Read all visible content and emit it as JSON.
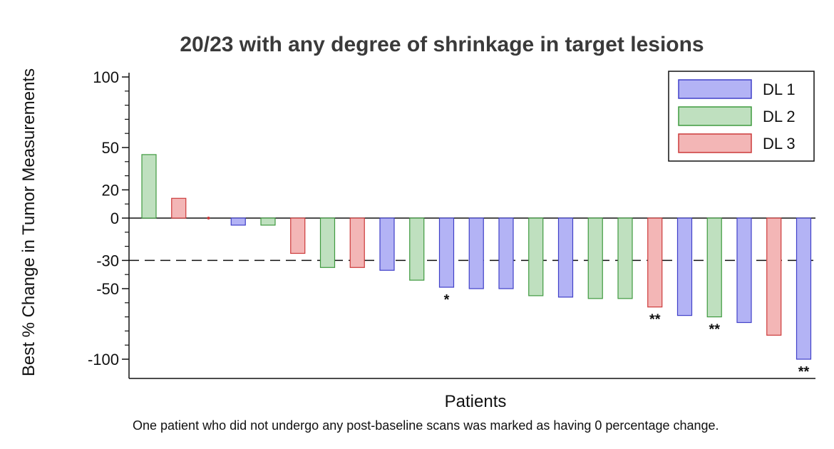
{
  "chart_data": {
    "type": "bar",
    "title": "20/23 with any degree of shrinkage in target lesions",
    "xlabel": "Patients",
    "ylabel": "Best % Change in Tumor Measurements",
    "ylim": [
      -113,
      103
    ],
    "yticks": [
      {
        "value": 100,
        "label": "100"
      },
      {
        "value": 50,
        "label": "50"
      },
      {
        "value": 20,
        "label": "20"
      },
      {
        "value": 0,
        "label": "0"
      },
      {
        "value": -30,
        "label": "-30"
      },
      {
        "value": -50,
        "label": "-50"
      },
      {
        "value": -100,
        "label": "-100"
      }
    ],
    "minor_ticks": [
      90,
      80,
      70,
      60,
      40,
      30,
      10,
      -10,
      -20,
      -40,
      -60,
      -70,
      -80,
      -90
    ],
    "reference_line": {
      "value": -30,
      "style": "dashed"
    },
    "legend": {
      "placement": "top-right",
      "items": [
        {
          "key": "DL1",
          "label": "DL 1"
        },
        {
          "key": "DL2",
          "label": "DL 2"
        },
        {
          "key": "DL3",
          "label": "DL 3"
        }
      ]
    },
    "colors": {
      "DL1": {
        "fill": "#b3b3f5",
        "stroke": "#4040c8"
      },
      "DL2": {
        "fill": "#bfe0bf",
        "stroke": "#3f9a3f"
      },
      "DL3": {
        "fill": "#f3b6b6",
        "stroke": "#cc3a3a"
      }
    },
    "bars": [
      {
        "level": "DL2",
        "value": 45,
        "annotation": ""
      },
      {
        "level": "DL3",
        "value": 14,
        "annotation": ""
      },
      {
        "level": "DL3",
        "value": 0,
        "annotation": ""
      },
      {
        "level": "DL1",
        "value": -5,
        "annotation": ""
      },
      {
        "level": "DL2",
        "value": -5,
        "annotation": ""
      },
      {
        "level": "DL3",
        "value": -25,
        "annotation": ""
      },
      {
        "level": "DL2",
        "value": -35,
        "annotation": ""
      },
      {
        "level": "DL3",
        "value": -35,
        "annotation": ""
      },
      {
        "level": "DL1",
        "value": -37,
        "annotation": ""
      },
      {
        "level": "DL2",
        "value": -44,
        "annotation": ""
      },
      {
        "level": "DL1",
        "value": -49,
        "annotation": "*"
      },
      {
        "level": "DL1",
        "value": -50,
        "annotation": ""
      },
      {
        "level": "DL1",
        "value": -50,
        "annotation": ""
      },
      {
        "level": "DL2",
        "value": -55,
        "annotation": ""
      },
      {
        "level": "DL1",
        "value": -56,
        "annotation": ""
      },
      {
        "level": "DL2",
        "value": -57,
        "annotation": ""
      },
      {
        "level": "DL2",
        "value": -57,
        "annotation": ""
      },
      {
        "level": "DL3",
        "value": -63,
        "annotation": "**"
      },
      {
        "level": "DL1",
        "value": -69,
        "annotation": ""
      },
      {
        "level": "DL2",
        "value": -70,
        "annotation": "**"
      },
      {
        "level": "DL1",
        "value": -74,
        "annotation": ""
      },
      {
        "level": "DL3",
        "value": -83,
        "annotation": ""
      },
      {
        "level": "DL1",
        "value": -100,
        "annotation": "**"
      }
    ]
  },
  "footnote": "One patient who did not undergo any post-baseline scans was marked as having 0 percentage change."
}
